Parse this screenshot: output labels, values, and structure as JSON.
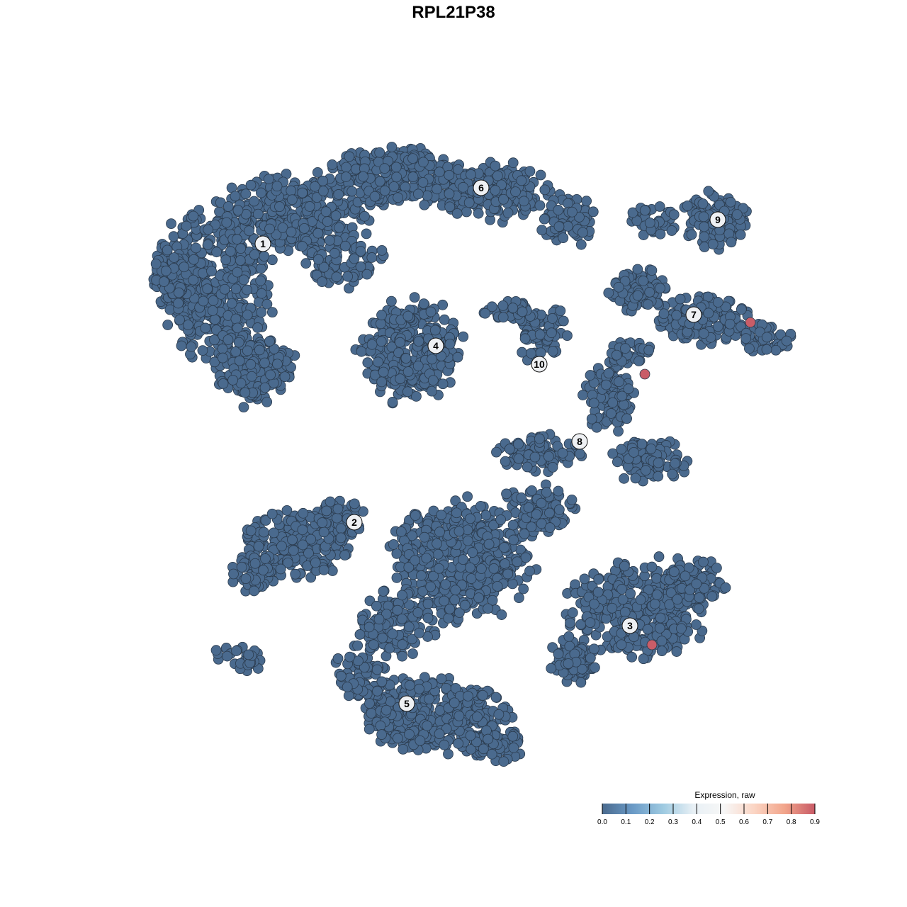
{
  "chart_data": {
    "type": "scatter",
    "title": "RPL21P38",
    "xlabel": "",
    "ylabel": "",
    "grid": false,
    "clusters": [
      "1",
      "2",
      "3",
      "4",
      "5",
      "6",
      "7",
      "8",
      "9",
      "10"
    ],
    "highlighted_cells": [
      {
        "cluster": "7",
        "expression": 0.9
      },
      {
        "cluster": "8",
        "expression": 0.9
      },
      {
        "cluster": "3",
        "expression": 0.9
      }
    ],
    "base_expression": 0.0,
    "legend": {
      "title": "Expression, raw",
      "placement": "bottom-right",
      "ticks": [
        "0.0",
        "0.1",
        "0.2",
        "0.3",
        "0.4",
        "0.5",
        "0.6",
        "0.7",
        "0.8",
        "0.9"
      ],
      "range": [
        0,
        0.9
      ],
      "colors": [
        "#4a6a8e",
        "#6a9ac6",
        "#9ecae1",
        "#e8f0f5",
        "#f7f7f7",
        "#fbd5c4",
        "#f2a58b",
        "#c85a66"
      ]
    },
    "colors": {
      "low": "#4a6a8e",
      "high": "#c95d68",
      "point_stroke": "#2b3b4d"
    }
  }
}
